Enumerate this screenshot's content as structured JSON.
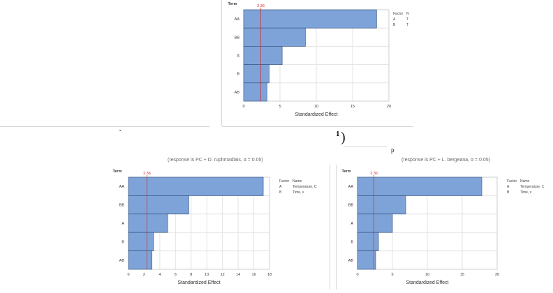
{
  "fragments": {
    "backtick": "`",
    "superscript_one": "1",
    "close_paren": ")",
    "p_char": "p"
  },
  "subtitles": {
    "left": "(response is PC + D. ruphmadlais, α = 0.05)",
    "right": "(response is PC + L. bergeana, α = 0.05)"
  },
  "colors": {
    "bar_fill": "#7ea3d9",
    "bar_stroke": "#3a5a86",
    "ref_line": "#d62728",
    "grid": "#e3e3e3",
    "frame": "#cfcfcf"
  },
  "chart_data": [
    {
      "type": "bar",
      "orientation": "horizontal",
      "title": "",
      "xlabel": "Standardized Effect",
      "ylabel": "Term",
      "categories": [
        "AA",
        "BB",
        "A",
        "B",
        "AB"
      ],
      "values": [
        18.3,
        8.5,
        5.3,
        3.5,
        3.2
      ],
      "reference_line": {
        "value": 2.36,
        "label": "2.36"
      },
      "xlim": [
        0,
        20
      ],
      "xticks": [
        0,
        5,
        10,
        15,
        20
      ],
      "grid": true,
      "legend": {
        "header": [
          "Factor",
          "N"
        ],
        "rows": [
          [
            "A",
            "T"
          ],
          [
            "B",
            "T"
          ]
        ]
      }
    },
    {
      "type": "bar",
      "orientation": "horizontal",
      "title": "",
      "xlabel": "Standardized Effect",
      "ylabel": "Term",
      "categories": [
        "AA",
        "BB",
        "A",
        "B",
        "AB"
      ],
      "values": [
        17.2,
        7.7,
        5.0,
        3.2,
        3.0
      ],
      "reference_line": {
        "value": 2.36,
        "label": "2.36"
      },
      "xlim": [
        0,
        18
      ],
      "xticks": [
        0,
        2,
        4,
        6,
        8,
        10,
        12,
        14,
        16,
        18
      ],
      "grid": true,
      "legend": {
        "header": [
          "Factor",
          "Name"
        ],
        "rows": [
          [
            "A",
            "Temperature, C"
          ],
          [
            "B",
            "Time, v"
          ]
        ]
      }
    },
    {
      "type": "bar",
      "orientation": "horizontal",
      "title": "",
      "xlabel": "Standardized Effect",
      "ylabel": "Term",
      "categories": [
        "AA",
        "BB",
        "A",
        "B",
        "AB"
      ],
      "values": [
        17.8,
        6.9,
        5.0,
        3.0,
        2.6
      ],
      "reference_line": {
        "value": 2.36,
        "label": "2.36"
      },
      "xlim": [
        0,
        20
      ],
      "xticks": [
        0,
        5,
        10,
        15,
        20
      ],
      "grid": true,
      "legend": {
        "header": [
          "Factor",
          "Name"
        ],
        "rows": [
          [
            "A",
            "Temperature, C"
          ],
          [
            "B",
            "Time, v"
          ]
        ]
      }
    }
  ]
}
